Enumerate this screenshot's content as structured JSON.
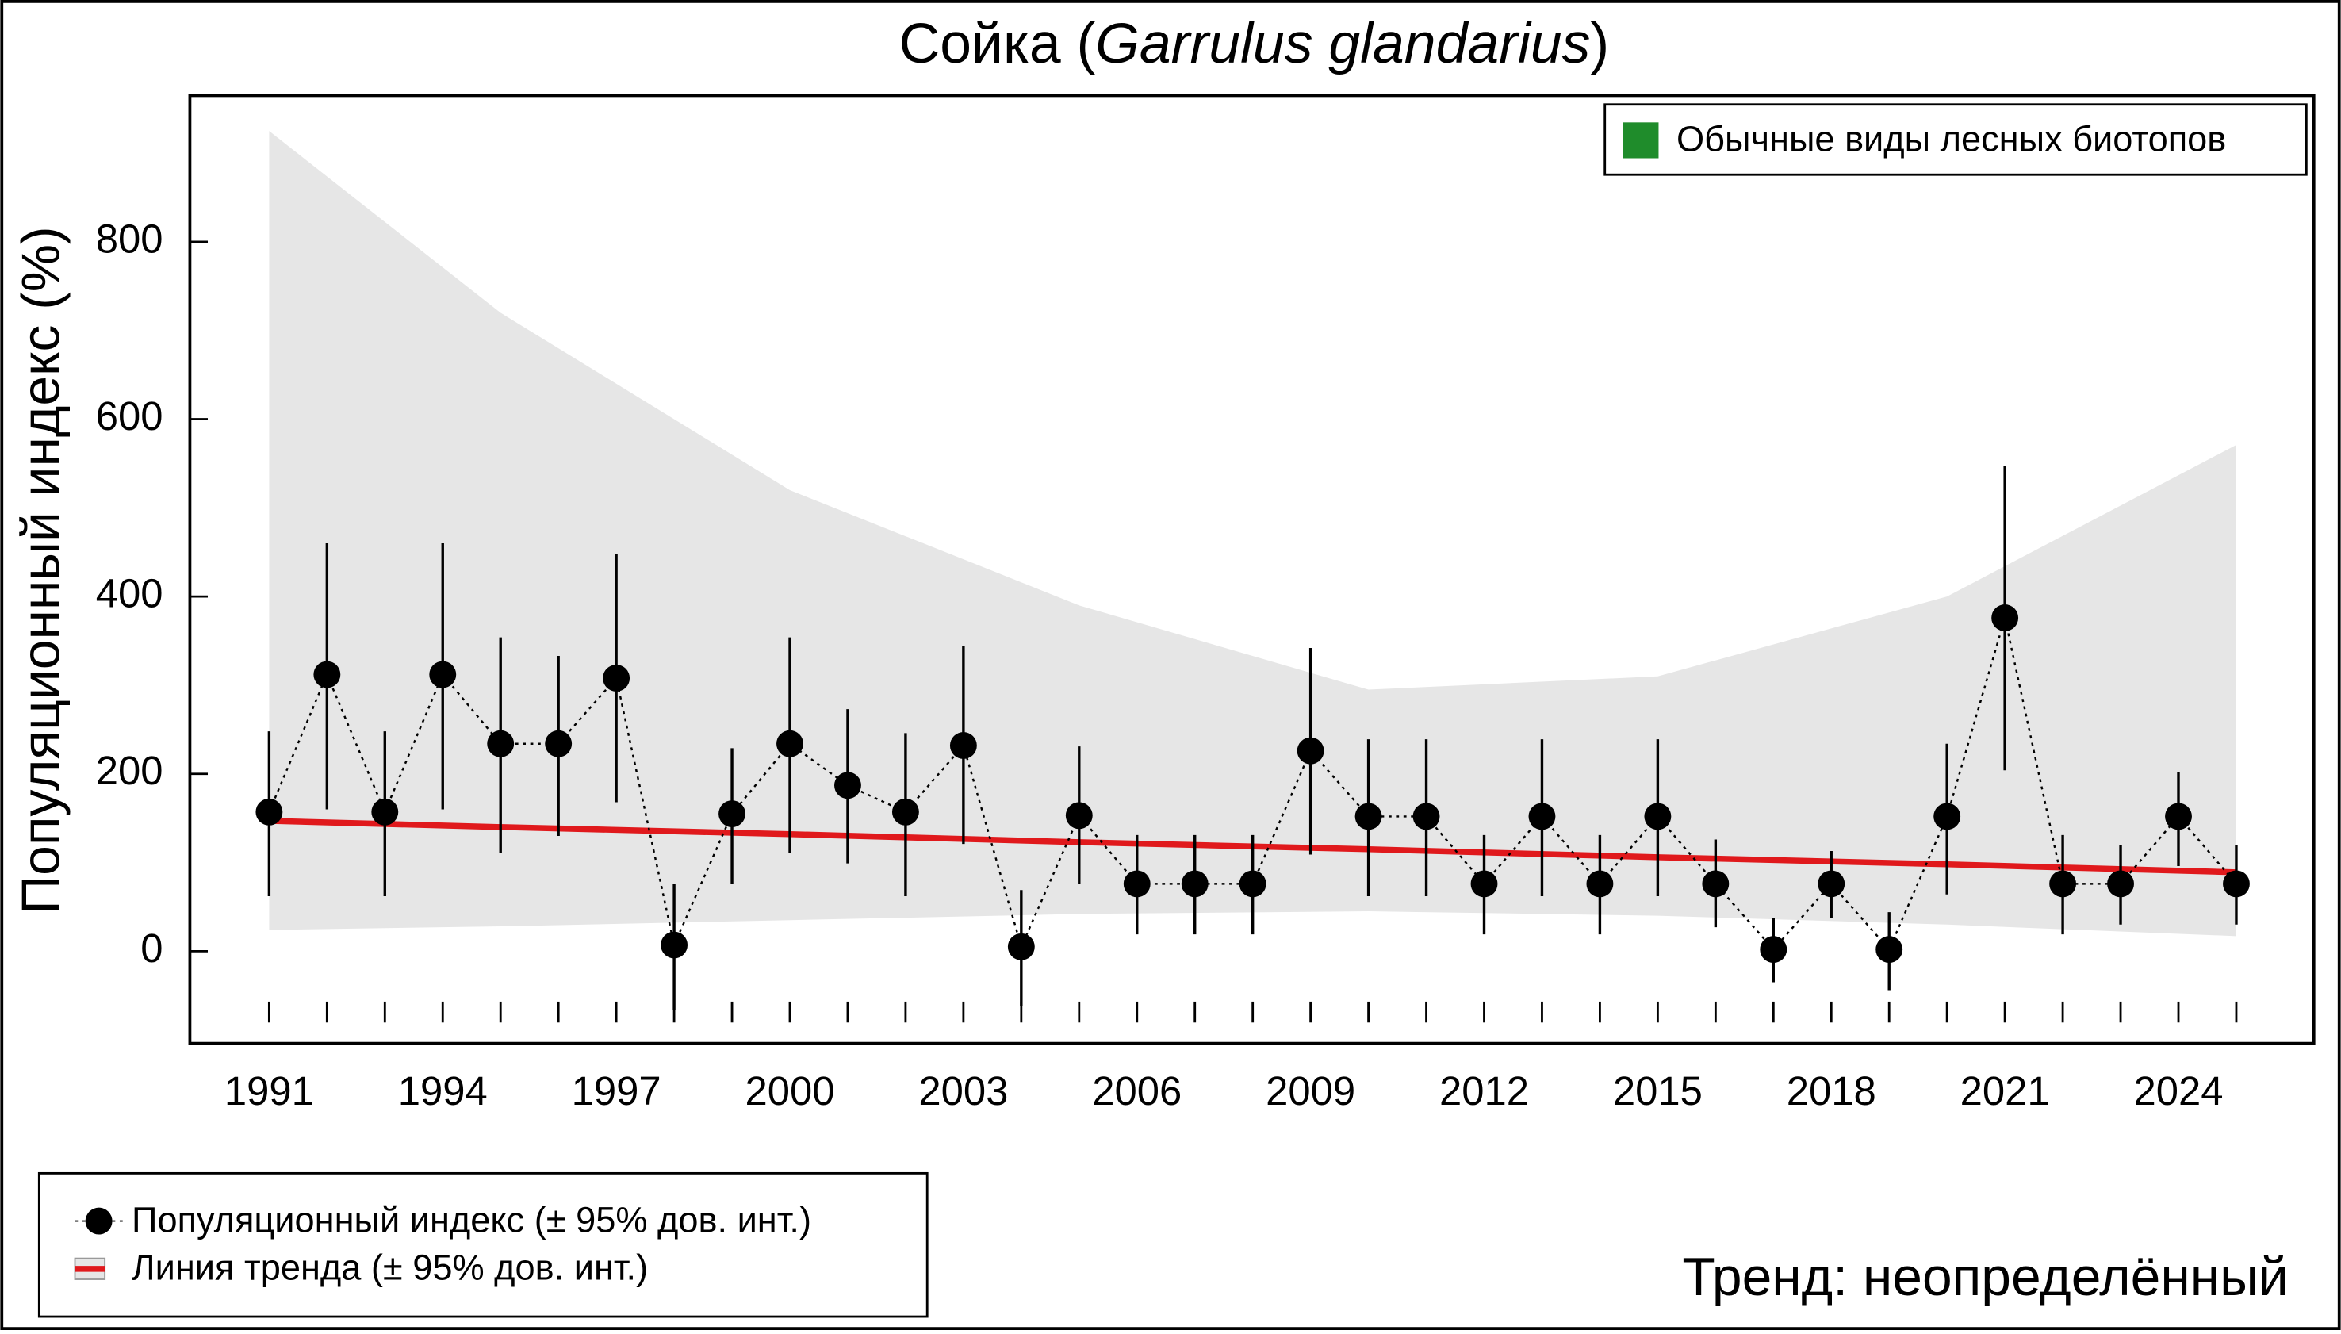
{
  "chart_data": {
    "type": "line",
    "title_parts": [
      "Сойка (",
      "Garrulus glandarius",
      ")"
    ],
    "ylabel": "Популяционный индекс (%)",
    "group_label": "Обычные виды лесных биотопов",
    "group_color": "#1f8c2b",
    "trend_label": "Тренд: неопределённый",
    "x": [
      1991,
      1992,
      1993,
      1994,
      1995,
      1996,
      1997,
      1998,
      1999,
      2000,
      2001,
      2002,
      2003,
      2004,
      2005,
      2006,
      2007,
      2008,
      2009,
      2010,
      2011,
      2012,
      2013,
      2014,
      2015,
      2016,
      2017,
      2018,
      2019,
      2020,
      2021,
      2022,
      2023,
      2024,
      2025
    ],
    "series": [
      {
        "name": "Популяционный индекс (± 95% дов. инт.)",
        "color": "#000000",
        "values": [
          157,
          312,
          157,
          312,
          234,
          234,
          308,
          7,
          155,
          234,
          187,
          157,
          232,
          5,
          153,
          76,
          76,
          76,
          226,
          152,
          152,
          76,
          152,
          76,
          152,
          76,
          2,
          76,
          2,
          152,
          376,
          76,
          76,
          152,
          76
        ],
        "lower": [
          62,
          160,
          62,
          160,
          111,
          130,
          168,
          -66,
          76,
          111,
          99,
          62,
          121,
          -62,
          76,
          19,
          19,
          19,
          109,
          62,
          62,
          19,
          62,
          19,
          62,
          27,
          -35,
          37,
          -44,
          64,
          204,
          19,
          30,
          96,
          30
        ],
        "upper": [
          248,
          460,
          248,
          460,
          354,
          333,
          448,
          76,
          229,
          354,
          273,
          246,
          344,
          69,
          231,
          131,
          131,
          131,
          342,
          239,
          239,
          131,
          239,
          131,
          239,
          126,
          37,
          113,
          44,
          234,
          547,
          131,
          120,
          202,
          120
        ]
      },
      {
        "name": "Линия тренда (± 95% дов. инт.)",
        "color": "#e0191c",
        "band_color": "#e6e6e6",
        "x": [
          1991,
          1995,
          2000,
          2005,
          2010,
          2015,
          2020,
          2025
        ],
        "values": [
          147,
          140,
          132,
          123,
          115,
          106,
          98,
          89
        ],
        "lower": [
          24,
          28,
          35,
          42,
          45,
          40,
          30,
          17
        ],
        "upper": [
          925,
          720,
          520,
          390,
          295,
          310,
          400,
          571
        ]
      }
    ],
    "xlim": [
      1989.63,
      2026.34
    ],
    "ylim": [
      -104,
      965
    ],
    "xticks": [
      1991,
      1994,
      1997,
      2000,
      2003,
      2006,
      2009,
      2012,
      2015,
      2018,
      2021,
      2024
    ],
    "yticks": [
      0,
      200,
      400,
      600,
      800
    ]
  }
}
